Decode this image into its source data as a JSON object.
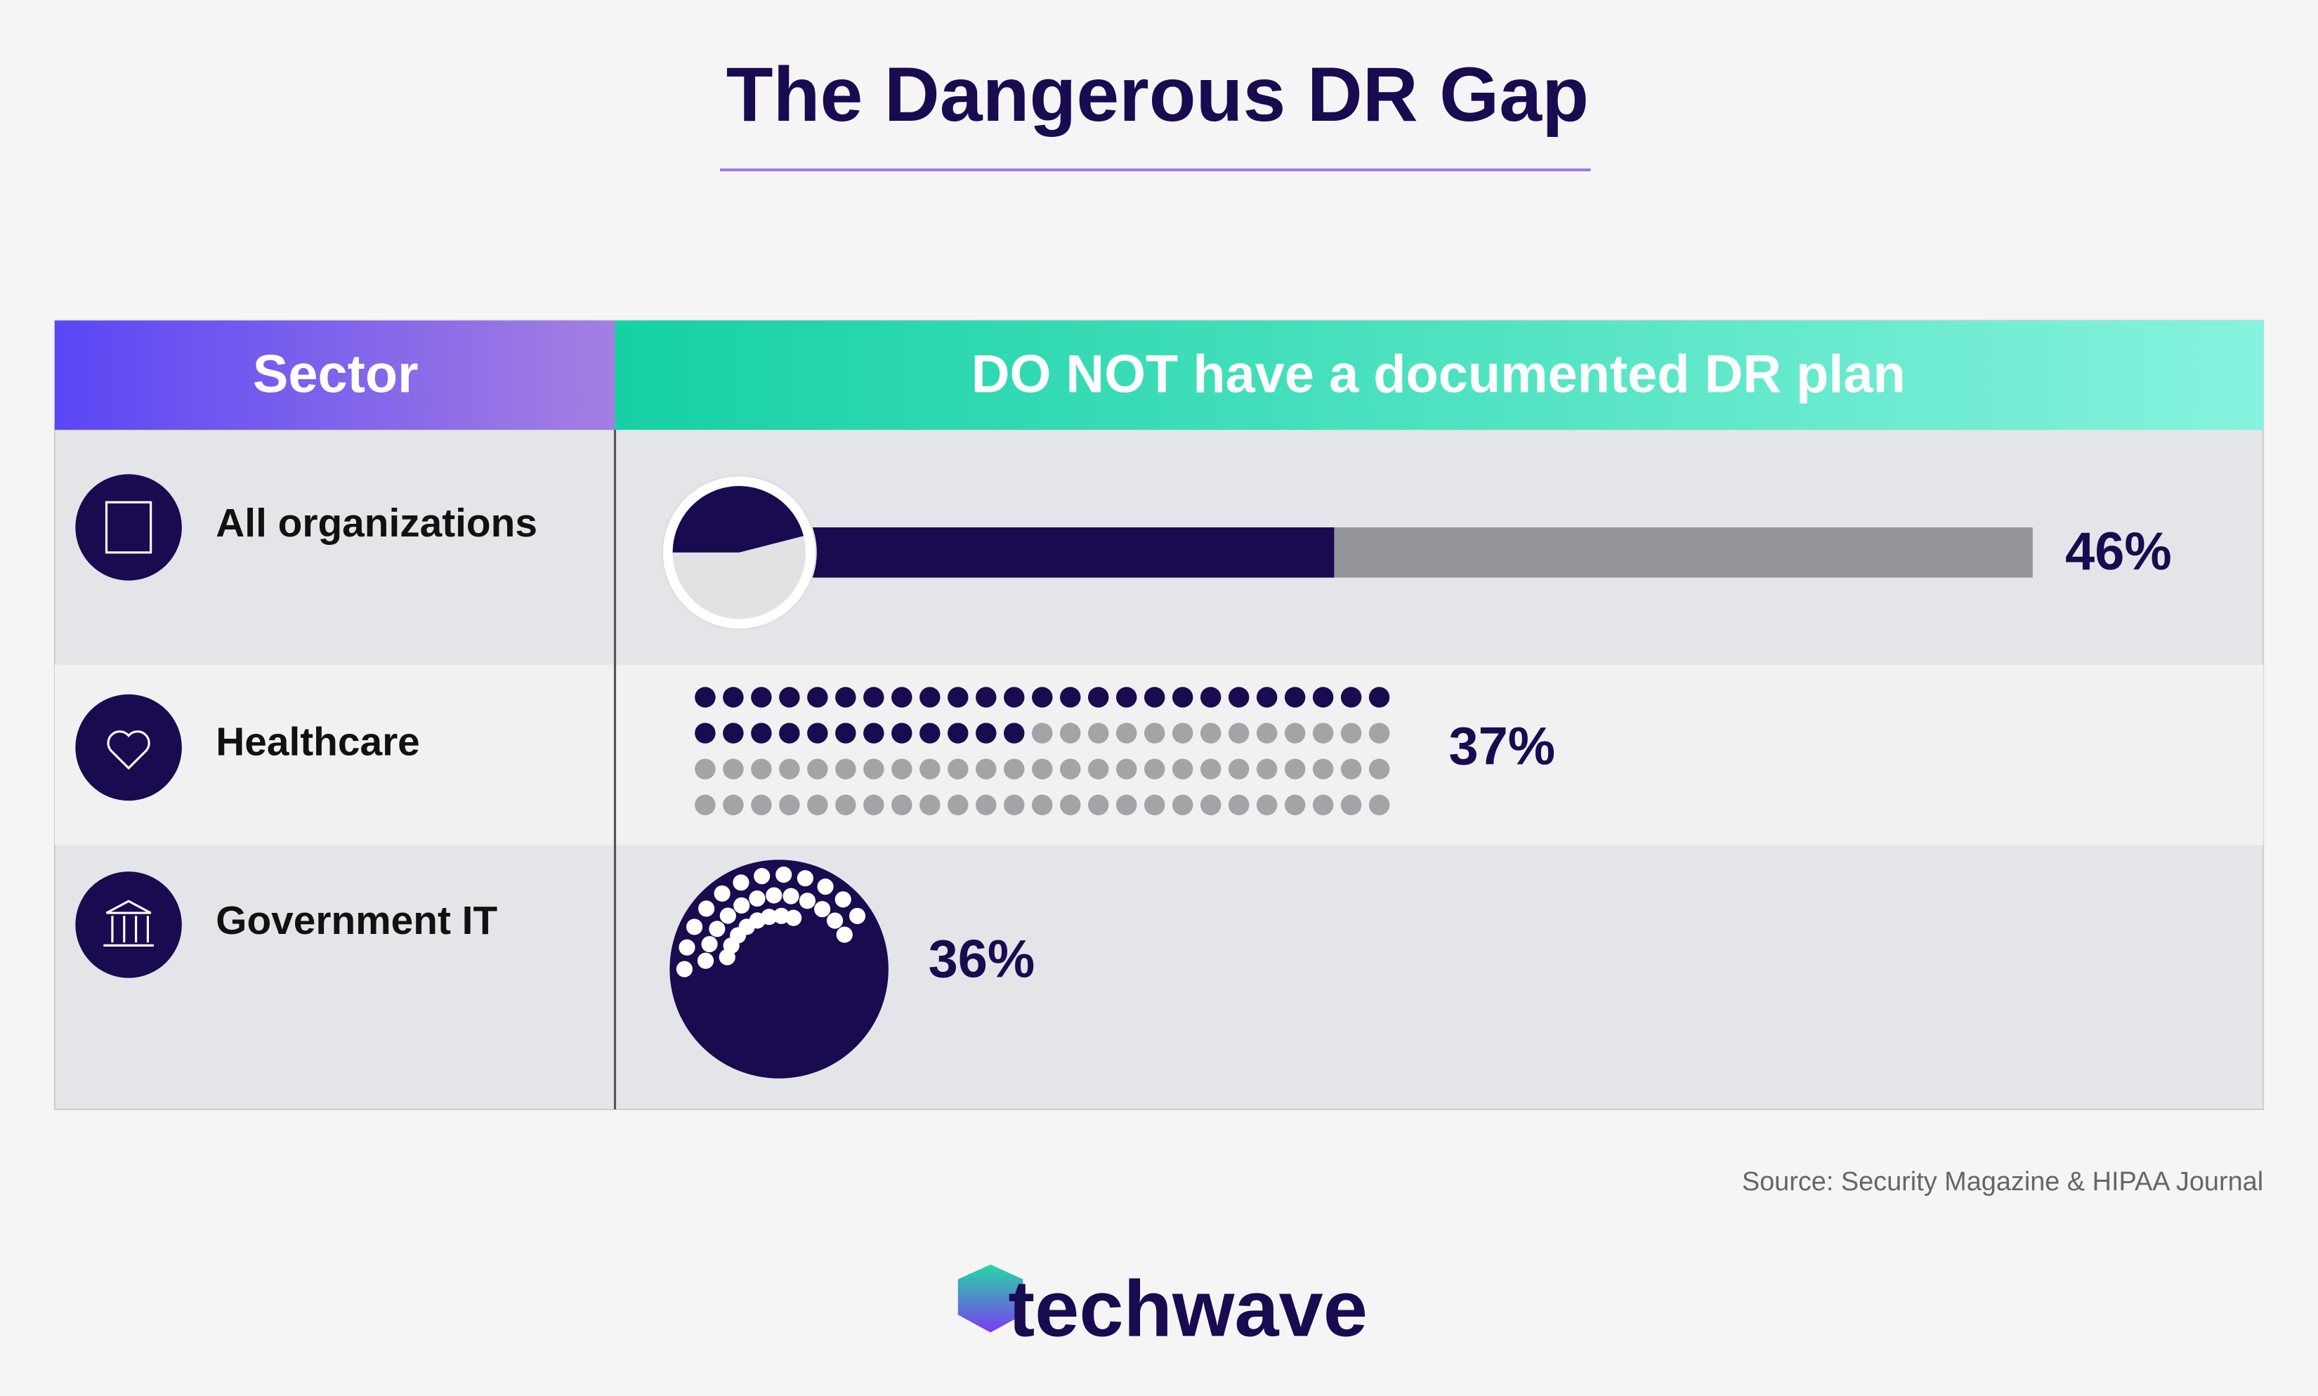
{
  "title": "The Dangerous DR Gap",
  "table": {
    "columns": [
      "Sector",
      "DO NOT have a documented DR plan"
    ],
    "rows": [
      {
        "sector": "All organizations",
        "value": 46,
        "value_label": "46%"
      },
      {
        "sector": "Healthcare",
        "value": 37,
        "value_label": "37%"
      },
      {
        "sector": "Government IT",
        "value": 36,
        "value_label": "36%"
      }
    ]
  },
  "source": "Source: Security Magazine & HIPAA Journal",
  "logo": "techwave"
}
